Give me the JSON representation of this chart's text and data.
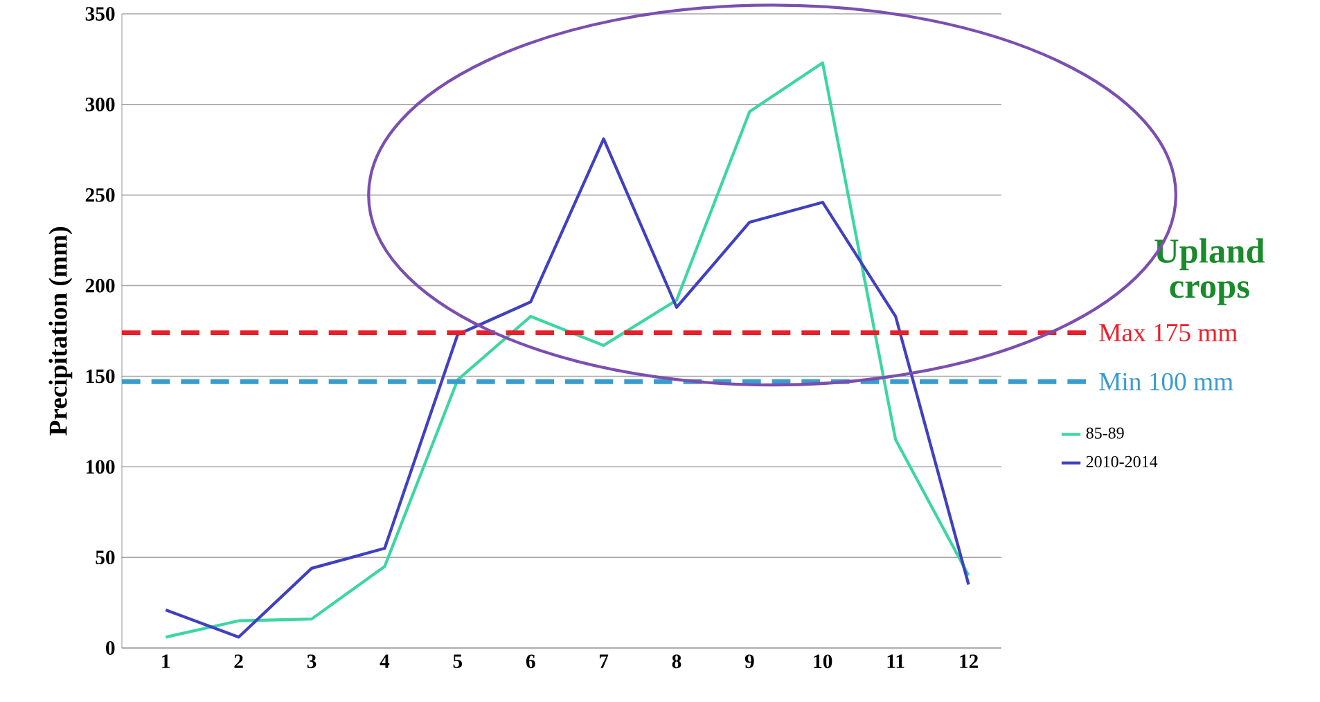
{
  "chart_data": {
    "type": "line",
    "ylabel": "Precipitation (mm)",
    "categories": [
      "1",
      "2",
      "3",
      "4",
      "5",
      "6",
      "7",
      "8",
      "9",
      "10",
      "11",
      "12"
    ],
    "series": [
      {
        "name": "85-89",
        "color": "#3dd6a3",
        "values": [
          6,
          15,
          16,
          45,
          148,
          183,
          167,
          192,
          296,
          323,
          115,
          40
        ]
      },
      {
        "name": "2010-2014",
        "color": "#4040c0",
        "values": [
          21,
          6,
          44,
          55,
          173,
          191,
          281,
          188,
          235,
          246,
          183,
          35
        ]
      }
    ],
    "ylim": [
      0,
      350
    ],
    "yticks": [
      0,
      50,
      100,
      150,
      200,
      250,
      300,
      350
    ],
    "grid": "y",
    "legend": "right",
    "marker": "none",
    "line_style": "solid",
    "ref_lines": [
      {
        "axis": "y",
        "value": 174,
        "label": "Max 175 mm",
        "color": "#e8202a",
        "line_style": "dashed"
      },
      {
        "axis": "y",
        "value": 147,
        "label": "Min 100 mm",
        "color": "#3a9ccc",
        "line_style": "dashed"
      }
    ],
    "annotations": [
      "Upland crops"
    ]
  }
}
